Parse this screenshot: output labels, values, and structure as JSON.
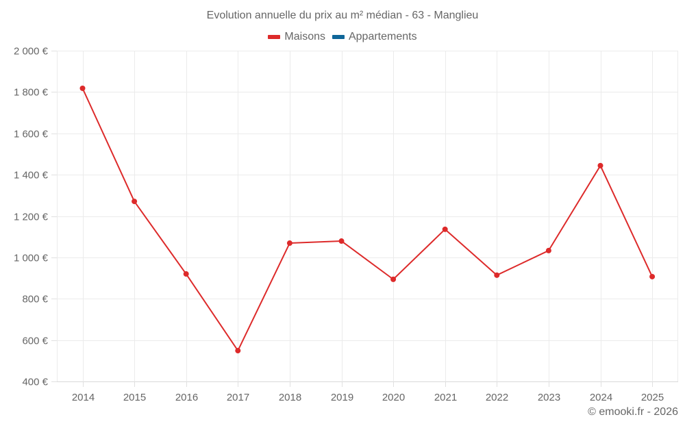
{
  "chart_data": {
    "type": "line",
    "title": "Evolution annuelle du prix au m² médian - 63 - Manglieu",
    "xlabel": "",
    "ylabel": "",
    "categories": [
      "2014",
      "2015",
      "2016",
      "2017",
      "2018",
      "2019",
      "2020",
      "2021",
      "2022",
      "2023",
      "2024",
      "2025"
    ],
    "series": [
      {
        "name": "Maisons",
        "color": "#dd2a2a",
        "values": [
          1818,
          1271,
          920,
          549,
          1069,
          1079,
          894,
          1136,
          914,
          1033,
          1444,
          907
        ]
      },
      {
        "name": "Appartements",
        "color": "#0f6699",
        "values": []
      }
    ],
    "ylim": [
      400,
      2000
    ],
    "yticks": [
      400,
      600,
      800,
      1000,
      1200,
      1400,
      1600,
      1800,
      2000
    ],
    "ytick_labels": [
      "400 €",
      "600 €",
      "800 €",
      "1 000 €",
      "1 200 €",
      "1 400 €",
      "1 600 €",
      "1 800 €",
      "2 000 €"
    ],
    "grid": true,
    "legend_position": "top"
  },
  "header": {
    "title": "Evolution annuelle du prix au m² médian - 63 - Manglieu"
  },
  "legend": {
    "items": [
      {
        "label": "Maisons",
        "color": "#dd2a2a"
      },
      {
        "label": "Appartements",
        "color": "#0f6699"
      }
    ]
  },
  "footer": {
    "credit": "© emooki.fr - 2026"
  }
}
